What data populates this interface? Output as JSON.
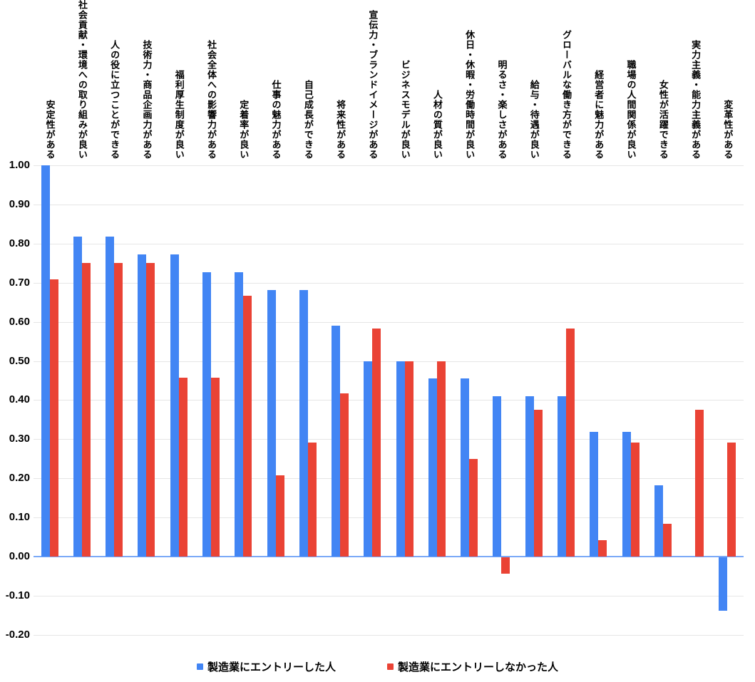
{
  "chart_data": {
    "type": "bar",
    "title": "",
    "xlabel": "",
    "ylabel": "",
    "categories": [
      "安定性がある",
      "社会貢献・環境への取り組みが良い",
      "人の役に立つことができる",
      "技術力・商品企画力がある",
      "福利厚生制度が良い",
      "社会全体への影響力がある",
      "定着率が良い",
      "仕事の魅力がある",
      "自己成長ができる",
      "将来性がある",
      "宣伝力・ブランドイメージがある",
      "ビジネスモデルが良い",
      "人材の質が良い",
      "休日・休暇・労働時間が良い",
      "明るさ・楽しさがある",
      "給与・待遇が良い",
      "グローバルな働き方ができる",
      "経営者に魅力がある",
      "職場の人間関係が良い",
      "女性が活躍できる",
      "実力主義・能力主義がある",
      "変革性がある"
    ],
    "series": [
      {
        "name": "製造業にエントリーした人",
        "color": "#4285F4",
        "values": [
          1.0,
          0.818,
          0.818,
          0.773,
          0.773,
          0.727,
          0.727,
          0.682,
          0.682,
          0.591,
          0.5,
          0.5,
          0.455,
          0.455,
          0.409,
          0.409,
          0.409,
          0.318,
          0.318,
          0.182,
          0.0,
          -0.136
        ]
      },
      {
        "name": "製造業にエントリーしなかった人",
        "color": "#EA4335",
        "values": [
          0.708,
          0.75,
          0.75,
          0.75,
          0.458,
          0.458,
          0.667,
          0.208,
          0.292,
          0.417,
          0.583,
          0.5,
          0.5,
          0.25,
          -0.042,
          0.375,
          0.583,
          0.042,
          0.292,
          0.083,
          0.375,
          0.292
        ]
      }
    ],
    "ylim": [
      -0.2,
      1.0
    ],
    "y_ticks": [
      "1.00",
      "0.90",
      "0.80",
      "0.70",
      "0.60",
      "0.50",
      "0.40",
      "0.30",
      "0.20",
      "0.10",
      "0.00",
      "-0.10",
      "-0.20"
    ],
    "grid": true,
    "legend_position": "bottom",
    "colors": {
      "gridline": "#E6E6E6",
      "zero_axis": "#7BAAF7",
      "text": "#000000",
      "background": "#FFFFFF"
    }
  }
}
